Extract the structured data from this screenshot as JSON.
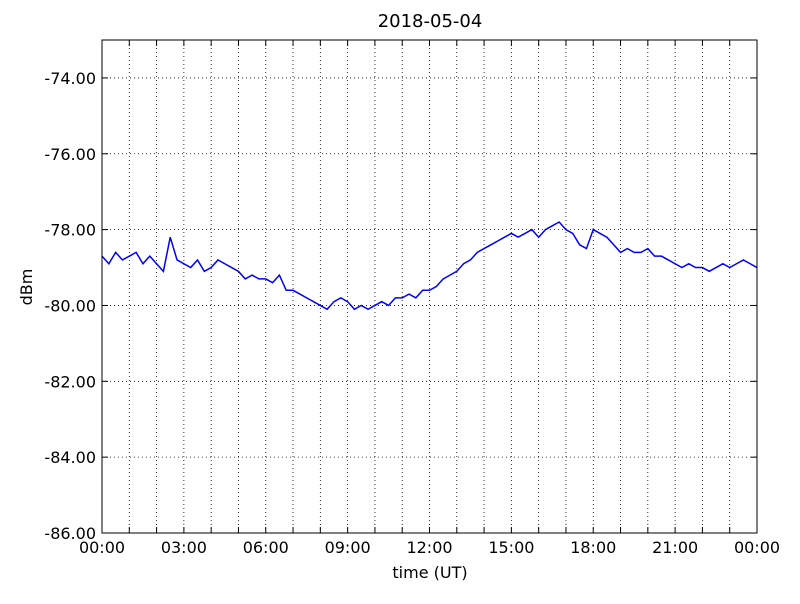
{
  "chart_data": {
    "type": "line",
    "title": "2018-05-04",
    "xlabel": "time (UT)",
    "ylabel": "dBm",
    "xlim": [
      0,
      24
    ],
    "ylim": [
      -86,
      -73
    ],
    "xticks": [
      {
        "value": 0,
        "label": "00:00"
      },
      {
        "value": 3,
        "label": "03:00"
      },
      {
        "value": 6,
        "label": "06:00"
      },
      {
        "value": 9,
        "label": "09:00"
      },
      {
        "value": 12,
        "label": "12:00"
      },
      {
        "value": 15,
        "label": "15:00"
      },
      {
        "value": 18,
        "label": "18:00"
      },
      {
        "value": 21,
        "label": "21:00"
      },
      {
        "value": 24,
        "label": "00:00"
      }
    ],
    "x_minor_ticks": [
      1,
      2,
      4,
      5,
      7,
      8,
      10,
      11,
      13,
      14,
      16,
      17,
      19,
      20,
      22,
      23
    ],
    "yticks": [
      {
        "value": -86,
        "label": "-86.00"
      },
      {
        "value": -84,
        "label": "-84.00"
      },
      {
        "value": -82,
        "label": "-82.00"
      },
      {
        "value": -80,
        "label": "-80.00"
      },
      {
        "value": -78,
        "label": "-78.00"
      },
      {
        "value": -76,
        "label": "-76.00"
      },
      {
        "value": -74,
        "label": "-74.00"
      }
    ],
    "grid": true,
    "x": [
      0,
      0.25,
      0.5,
      0.75,
      1,
      1.25,
      1.5,
      1.75,
      2,
      2.25,
      2.5,
      2.75,
      3,
      3.25,
      3.5,
      3.75,
      4,
      4.25,
      4.5,
      4.75,
      5,
      5.25,
      5.5,
      5.75,
      6,
      6.25,
      6.5,
      6.75,
      7,
      7.25,
      7.5,
      7.75,
      8,
      8.25,
      8.5,
      8.75,
      9,
      9.25,
      9.5,
      9.75,
      10,
      10.25,
      10.5,
      10.75,
      11,
      11.25,
      11.5,
      11.75,
      12,
      12.25,
      12.5,
      12.75,
      13,
      13.25,
      13.5,
      13.75,
      14,
      14.25,
      14.5,
      14.75,
      15,
      15.25,
      15.5,
      15.75,
      16,
      16.25,
      16.5,
      16.75,
      17,
      17.25,
      17.5,
      17.75,
      18,
      18.25,
      18.5,
      18.75,
      19,
      19.25,
      19.5,
      19.75,
      20,
      20.25,
      20.5,
      20.75,
      21,
      21.25,
      21.5,
      21.75,
      22,
      22.25,
      22.5,
      22.75,
      23,
      23.25,
      23.5,
      23.75,
      24
    ],
    "series": [
      {
        "color": "#0000ff",
        "values": [
          -78.7,
          -78.9,
          -78.6,
          -78.8,
          -78.7,
          -78.6,
          -78.9,
          -78.7,
          -78.9,
          -79.1,
          -78.2,
          -78.8,
          -78.9,
          -79.0,
          -78.8,
          -79.1,
          -79.0,
          -78.8,
          -78.9,
          -79.0,
          -79.1,
          -79.3,
          -79.2,
          -79.3,
          -79.3,
          -79.4,
          -79.2,
          -79.6,
          -79.6,
          -79.7,
          -79.8,
          -79.9,
          -80.0,
          -80.1,
          -79.9,
          -79.8,
          -79.9,
          -80.1,
          -80.0,
          -80.1,
          -80.0,
          -79.9,
          -80.0,
          -79.8,
          -79.8,
          -79.7,
          -79.8,
          -79.6,
          -79.6,
          -79.5,
          -79.3,
          -79.2,
          -79.1,
          -78.9,
          -78.8,
          -78.6,
          -78.5,
          -78.4,
          -78.3,
          -78.2,
          -78.1,
          -78.2,
          -78.1,
          -78.0,
          -78.2,
          -78.0,
          -77.9,
          -77.8,
          -78.0,
          -78.1,
          -78.4,
          -78.5,
          -78.0,
          -78.1,
          -78.2,
          -78.4,
          -78.6,
          -78.5,
          -78.6,
          -78.6,
          -78.5,
          -78.7,
          -78.7,
          -78.8,
          -78.9,
          -79.0,
          -78.9,
          -79.0,
          -79.0,
          -79.1,
          -79.0,
          -78.9,
          -79.0,
          -78.9,
          -78.8,
          -78.9,
          -79.0
        ]
      }
    ]
  }
}
